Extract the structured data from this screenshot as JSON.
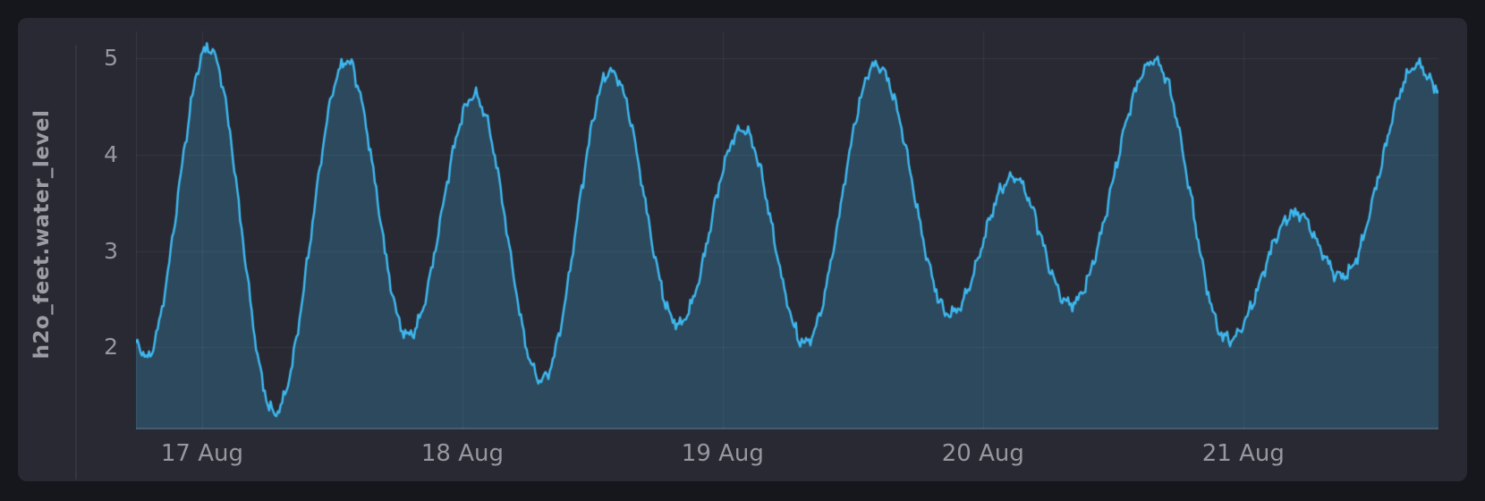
{
  "colors": {
    "page_bg": "#16171d",
    "panel_bg": "#282932",
    "line": "#3eb7ee",
    "fill": "rgba(62,183,238,0.23)",
    "grid": "rgba(255,255,255,0.07)",
    "axis_line": "rgba(255,255,255,0.12)",
    "tick_text": "#96989f",
    "title_text": "#9b9da4",
    "separator": "#34353d"
  },
  "chart_data": {
    "type": "area",
    "title": "",
    "xlabel": "",
    "ylabel": "h2o_feet.water_level",
    "series_name": "h2o_feet.water_level",
    "legend": "none",
    "grid": true,
    "x_unit": "hours since 16 Aug 00:00",
    "x_domain_hours": [
      17.9,
      138.0
    ],
    "y_domain": [
      1.15,
      5.28
    ],
    "x_ticks": [
      {
        "t": 24,
        "label": "17 Aug"
      },
      {
        "t": 48,
        "label": "18 Aug"
      },
      {
        "t": 72,
        "label": "19 Aug"
      },
      {
        "t": 96,
        "label": "20 Aug"
      },
      {
        "t": 120,
        "label": "21 Aug"
      }
    ],
    "y_ticks": [
      {
        "v": 5,
        "label": "5"
      },
      {
        "v": 4,
        "label": "4"
      },
      {
        "v": 3,
        "label": "3"
      },
      {
        "v": 2,
        "label": "2"
      }
    ],
    "key_points_hours_feet": [
      [
        17.9,
        2.05
      ],
      [
        18.8,
        1.9
      ],
      [
        24.6,
        5.11
      ],
      [
        30.7,
        1.33
      ],
      [
        37.3,
        4.97
      ],
      [
        43.0,
        2.12
      ],
      [
        49.1,
        4.61
      ],
      [
        55.3,
        1.66
      ],
      [
        61.7,
        4.86
      ],
      [
        67.9,
        2.24
      ],
      [
        73.8,
        4.26
      ],
      [
        79.6,
        2.05
      ],
      [
        86.2,
        4.93
      ],
      [
        93.0,
        2.35
      ],
      [
        98.8,
        3.77
      ],
      [
        104.1,
        2.45
      ],
      [
        111.8,
        4.98
      ],
      [
        118.6,
        2.08
      ],
      [
        124.8,
        3.39
      ],
      [
        129.1,
        2.74
      ],
      [
        136.1,
        4.93
      ],
      [
        138.0,
        4.69
      ]
    ]
  }
}
